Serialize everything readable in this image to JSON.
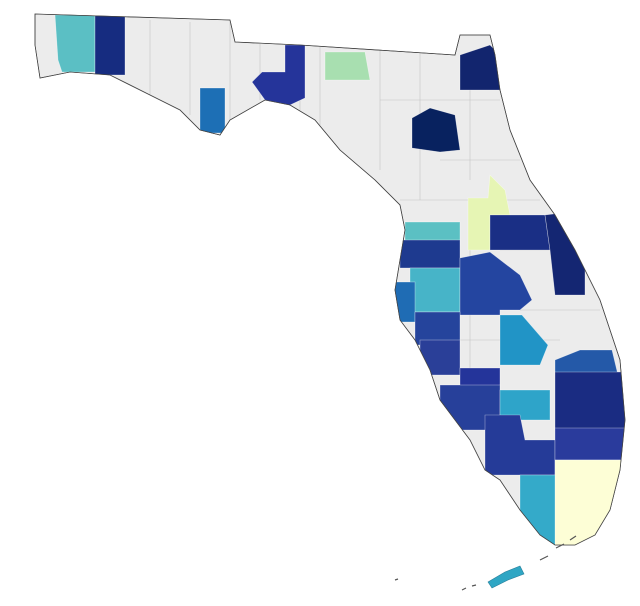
{
  "map": {
    "base_color": "#ececec",
    "outline_color": "#444444",
    "region_colors": [
      "#5bbfc4",
      "#162c80",
      "#1d6fb5",
      "#25349a",
      "#a8dfb0",
      "#12256e",
      "#08225f",
      "#e6f5b4",
      "#5bc0c3",
      "#1a2f85",
      "#142672",
      "#1e3a8f",
      "#47b4c8",
      "#1f6cb4",
      "#2445a0",
      "#25449c",
      "#2194c6",
      "#2a3f98",
      "#2459a8",
      "#24349a",
      "#27409a",
      "#2ea4c9",
      "#1a2c82",
      "#253b98",
      "#2a3b9c",
      "#fdfed6",
      "#34aac9",
      "#2fa6c4"
    ]
  }
}
